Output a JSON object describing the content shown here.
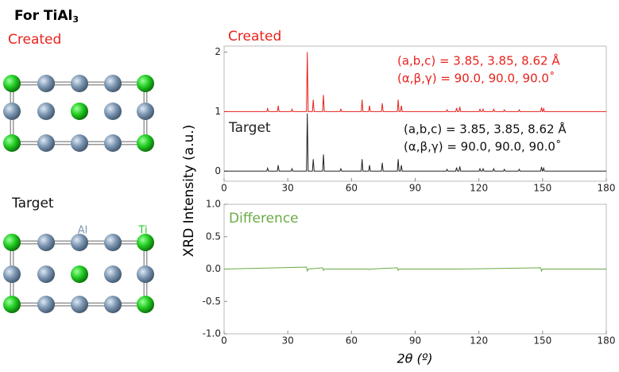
{
  "header": {
    "title": "For TiAl",
    "title_subscript": "3"
  },
  "structures": [
    {
      "label": "Created",
      "color": "#e8221c"
    },
    {
      "label": "Target",
      "color": "#111111"
    }
  ],
  "atom_labels": [
    {
      "text": "Al",
      "color": "#7d97b3"
    },
    {
      "text": "Ti",
      "color": "#22cc22"
    }
  ],
  "y_label": "XRD Intensity (a.u.)",
  "x_label": "2θ (º)",
  "chart_data": [
    {
      "type": "line",
      "x": [
        0,
        20.1,
        20.5,
        20.9,
        25.1,
        25.5,
        25.9,
        31.6,
        32,
        32.4,
        38.8,
        39.2,
        39.6,
        41.6,
        42,
        42.4,
        46.4,
        46.8,
        47.2,
        54.6,
        55,
        55.4,
        64.6,
        65,
        65.4,
        68.1,
        68.5,
        68.9,
        74.1,
        74.5,
        74.9,
        81.6,
        82,
        82.4,
        83.1,
        83.5,
        83.9,
        104.6,
        105,
        105.4,
        109.1,
        109.5,
        109.9,
        110.6,
        111,
        111.4,
        120.1,
        120.5,
        120.9,
        121.6,
        122,
        122.4,
        126.6,
        127,
        127.4,
        131.6,
        132,
        132.4,
        138.6,
        139,
        139.4,
        149.1,
        149.5,
        149.9,
        150.1,
        150.5,
        150.9,
        180
      ],
      "series": [
        {
          "name": "Created",
          "color": "#e8221c",
          "values": [
            1,
            1,
            1.05,
            1,
            1,
            1.1,
            1,
            1,
            1.04,
            1,
            1,
            2,
            1,
            1,
            1.2,
            1,
            1,
            1.28,
            1,
            1,
            1.04,
            1,
            1,
            1.2,
            1,
            1,
            1.1,
            1,
            1,
            1.14,
            1,
            1,
            1.2,
            1,
            1,
            1.1,
            1,
            1,
            1.03,
            1,
            1,
            1.06,
            1,
            1,
            1.08,
            1,
            1,
            1.04,
            1,
            1,
            1.04,
            1,
            1,
            1.04,
            1,
            1,
            1.03,
            1,
            1,
            1.03,
            1,
            1,
            1.07,
            1,
            1,
            1.05,
            1,
            1
          ]
        },
        {
          "name": "Target",
          "color": "#222222",
          "values": [
            0,
            0,
            0.05,
            0,
            0,
            0.1,
            0,
            0,
            0.04,
            0,
            0,
            0.97,
            0,
            0,
            0.2,
            0,
            0,
            0.28,
            0,
            0,
            0.04,
            0,
            0,
            0.2,
            0,
            0,
            0.1,
            0,
            0,
            0.14,
            0,
            0,
            0.2,
            0,
            0,
            0.1,
            0,
            0,
            0.03,
            0,
            0,
            0.06,
            0,
            0,
            0.08,
            0,
            0,
            0.04,
            0,
            0,
            0.04,
            0,
            0,
            0.04,
            0,
            0,
            0.03,
            0,
            0,
            0.03,
            0,
            0,
            0.07,
            0,
            0,
            0.05,
            0,
            0
          ]
        }
      ],
      "annotations": [
        {
          "text": "(a,b,c)  = 3.85, 3.85, 8.62 Å",
          "color": "#e8221c"
        },
        {
          "text": "(α,β,γ) = 90.0, 90.0, 90.0˚",
          "color": "#e8221c"
        },
        {
          "text": "(a,b,c)  = 3.85, 3.85, 8.62 Å",
          "color": "#111111"
        },
        {
          "text": "(α,β,γ) = 90.0, 90.0, 90.0˚",
          "color": "#111111"
        }
      ],
      "xlim": [
        0,
        180
      ],
      "xticks": [
        0,
        30,
        60,
        90,
        120,
        150,
        180
      ],
      "ylim": [
        -0.17,
        2.1
      ],
      "yticks": [
        0,
        1,
        2
      ]
    },
    {
      "type": "line",
      "x": [
        0,
        38.8,
        39.2,
        39.6,
        46.4,
        46.8,
        47.2,
        68.1,
        68.5,
        68.9,
        81.6,
        82,
        82.4,
        111,
        149.1,
        149.5,
        149.9,
        180
      ],
      "series": [
        {
          "name": "Difference",
          "color": "#6aaa45",
          "values": [
            0,
            0.03,
            -0.03,
            0,
            0.02,
            -0.02,
            0,
            0,
            -0.01,
            0,
            0.02,
            -0.02,
            0,
            0,
            0.02,
            -0.03,
            0,
            0
          ]
        }
      ],
      "xlim": [
        0,
        180
      ],
      "xticks": [
        0,
        30,
        60,
        90,
        120,
        150,
        180
      ],
      "ylim": [
        -1,
        1
      ],
      "yticks": [
        {
          "value": -1,
          "label": "-1.0"
        },
        {
          "value": -0.5,
          "label": "-0.5"
        },
        {
          "value": 0,
          "label": "0.0"
        },
        {
          "value": 0.5,
          "label": "0.5"
        },
        {
          "value": 1,
          "label": "1.0"
        }
      ]
    }
  ]
}
